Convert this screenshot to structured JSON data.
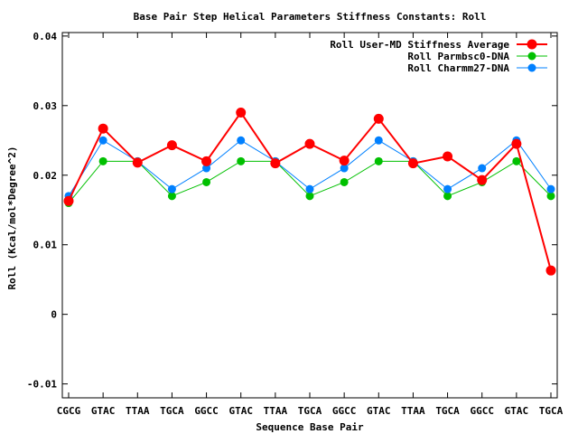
{
  "chart_data": {
    "type": "line",
    "title": "Base Pair Step Helical Parameters Stiffness Constants: Roll",
    "xlabel": "Sequence Base Pair",
    "ylabel": "Roll (Kcal/mol*Degree^2)",
    "ylim": [
      -0.012,
      0.0405
    ],
    "yticks": [
      {
        "value": 0.04,
        "label": "0.04"
      },
      {
        "value": 0.03,
        "label": "0.03"
      },
      {
        "value": 0.02,
        "label": "0.02"
      },
      {
        "value": 0.01,
        "label": "0.01"
      },
      {
        "value": 0,
        "label": "0"
      },
      {
        "value": -0.01,
        "label": "-0.01"
      }
    ],
    "categories": [
      "CGCG",
      "GTAC",
      "TTAA",
      "TGCA",
      "GGCC",
      "GTAC",
      "TTAA",
      "TGCA",
      "GGCC",
      "GTAC",
      "TTAA",
      "TGCA",
      "GGCC",
      "GTAC",
      "TGCA"
    ],
    "grid": false,
    "legend_position": "top-right",
    "series": [
      {
        "name": "Roll User-MD Stiffness Average",
        "color": "#ff0000",
        "values": [
          0.0163,
          0.0267,
          0.0218,
          0.0243,
          0.022,
          0.029,
          0.0217,
          0.0245,
          0.0221,
          0.0281,
          0.0217,
          0.0227,
          0.0193,
          0.0245,
          0.0063
        ]
      },
      {
        "name": "Roll Parmbsc0-DNA",
        "color": "#00c000",
        "values": [
          0.016,
          0.022,
          0.022,
          0.017,
          0.019,
          0.022,
          0.022,
          0.017,
          0.019,
          0.022,
          0.022,
          0.017,
          0.019,
          0.022,
          0.017
        ]
      },
      {
        "name": "Roll Charmm27-DNA",
        "color": "#0080ff",
        "values": [
          0.017,
          0.025,
          0.022,
          0.018,
          0.021,
          0.025,
          0.022,
          0.018,
          0.021,
          0.025,
          0.022,
          0.018,
          0.021,
          0.025,
          0.018
        ]
      }
    ]
  }
}
